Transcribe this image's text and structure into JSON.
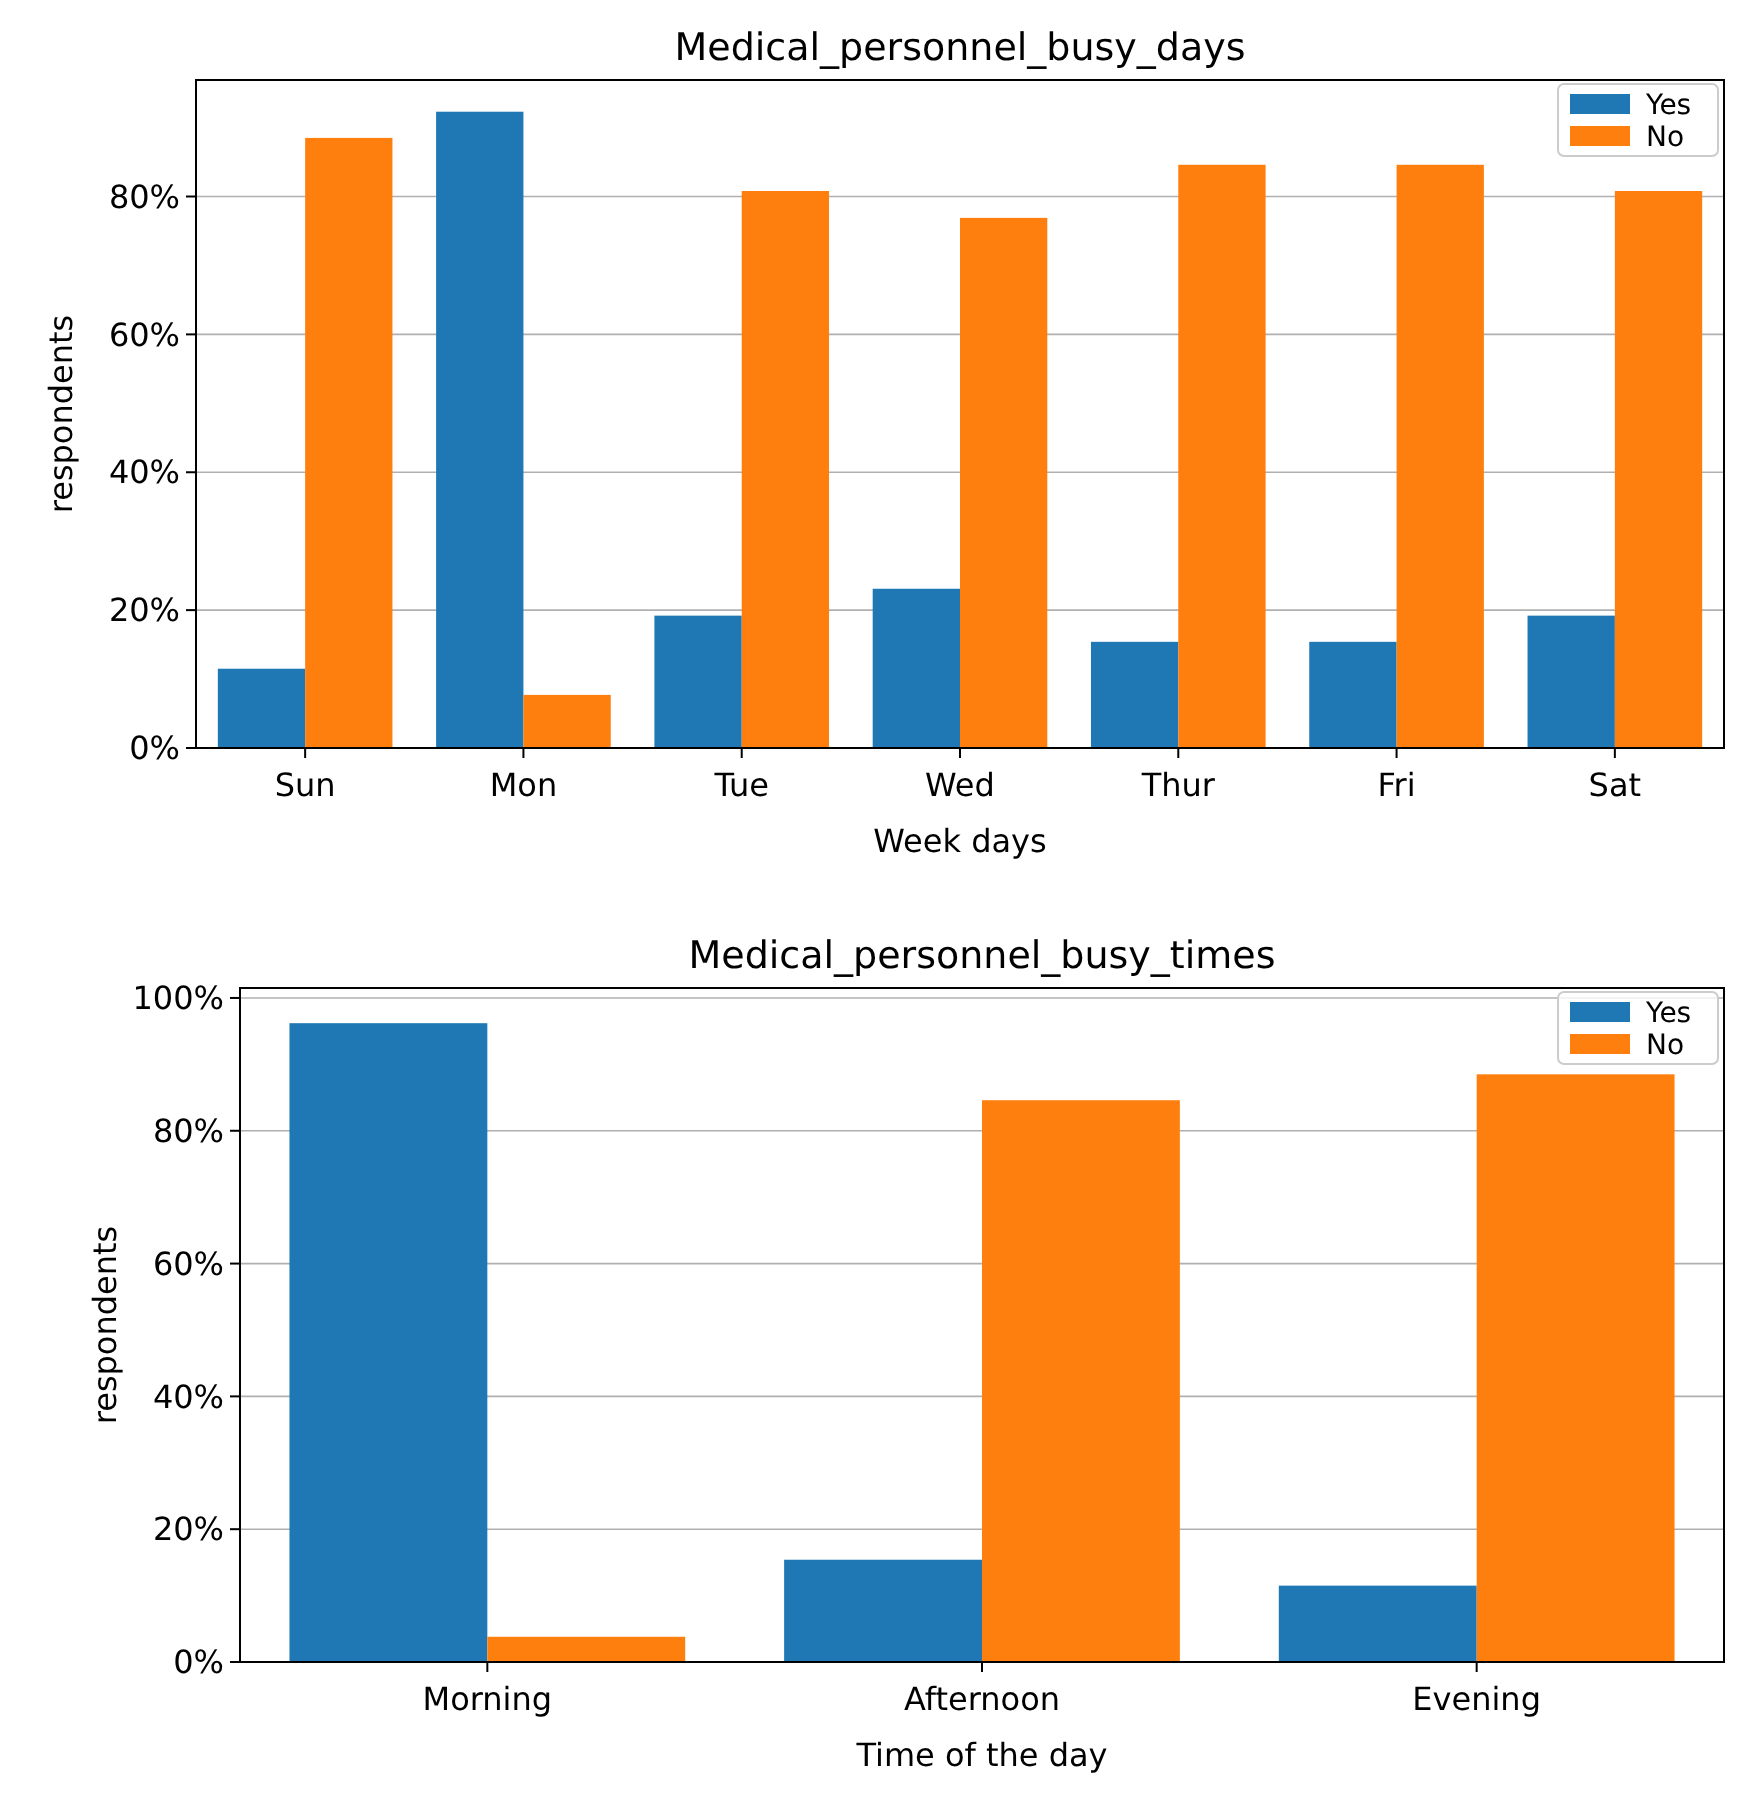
{
  "chart_data": [
    {
      "type": "bar",
      "title": "Medical_personnel_busy_days",
      "xlabel": "Week days",
      "ylabel": "respondents",
      "categories": [
        "Sun",
        "Mon",
        "Tue",
        "Wed",
        "Thur",
        "Fri",
        "Sat"
      ],
      "series": [
        {
          "name": "Yes",
          "color": "#1f77b4",
          "values": [
            11.5,
            92.3,
            19.2,
            23.1,
            15.4,
            15.4,
            19.2
          ]
        },
        {
          "name": "No",
          "color": "#ff7f0e",
          "values": [
            88.5,
            7.7,
            80.8,
            76.9,
            84.6,
            84.6,
            80.8
          ]
        }
      ],
      "ylim": [
        0,
        96.9
      ],
      "yticks": [
        {
          "value": 0,
          "label": "0%"
        },
        {
          "value": 20,
          "label": "20%"
        },
        {
          "value": 40,
          "label": "40%"
        },
        {
          "value": 60,
          "label": "60%"
        },
        {
          "value": 80,
          "label": "80%"
        }
      ],
      "grid": "y",
      "legend": "top right"
    },
    {
      "type": "bar",
      "title": "Medical_personnel_busy_times",
      "xlabel": "Time of the day",
      "ylabel": "respondents",
      "categories": [
        "Morning",
        "Afternoon",
        "Evening"
      ],
      "series": [
        {
          "name": "Yes",
          "color": "#1f77b4",
          "values": [
            96.2,
            15.4,
            11.5
          ]
        },
        {
          "name": "No",
          "color": "#ff7f0e",
          "values": [
            3.8,
            84.6,
            88.5
          ]
        }
      ],
      "ylim": [
        0,
        101.5
      ],
      "yticks": [
        {
          "value": 0,
          "label": "0%"
        },
        {
          "value": 20,
          "label": "20%"
        },
        {
          "value": 40,
          "label": "40%"
        },
        {
          "value": 60,
          "label": "60%"
        },
        {
          "value": 80,
          "label": "80%"
        },
        {
          "value": 100,
          "label": "100%"
        }
      ],
      "grid": "y",
      "legend": "top right"
    }
  ]
}
